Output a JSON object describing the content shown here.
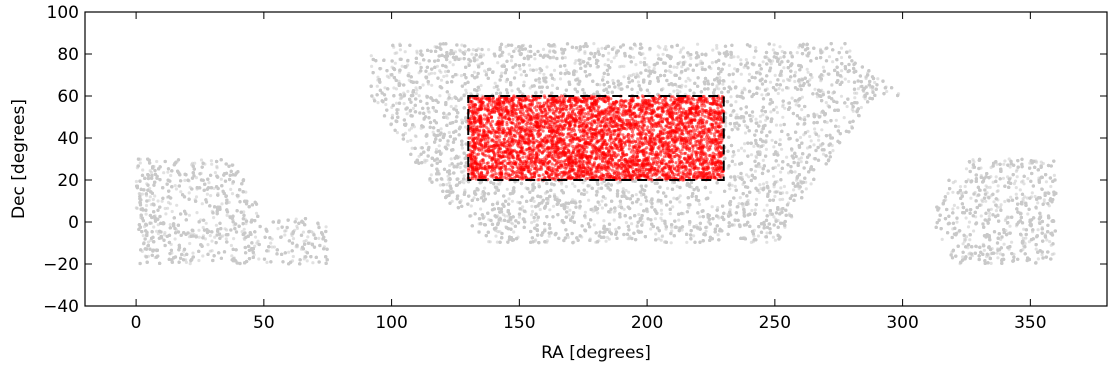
{
  "chart_data": {
    "type": "scatter",
    "title": "",
    "xlabel": "RA [degrees]",
    "ylabel": "Dec [degrees]",
    "xlim": [
      -20,
      380
    ],
    "ylim": [
      -40,
      100
    ],
    "xticks": [
      0,
      50,
      100,
      150,
      200,
      250,
      300,
      350
    ],
    "yticks": [
      -40,
      -20,
      0,
      20,
      40,
      60,
      80,
      100
    ],
    "xtick_labels": [
      "0",
      "50",
      "100",
      "150",
      "200",
      "250",
      "300",
      "350"
    ],
    "ytick_labels": [
      "−40",
      "−20",
      "0",
      "20",
      "40",
      "60",
      "80",
      "100"
    ],
    "grid": false,
    "series": [
      {
        "color": "#c8c8c8",
        "marker": "dot",
        "regions": [
          {
            "ra_range": [
              0,
              75
            ],
            "dec_range": [
              -20,
              30
            ],
            "shape": "left footprint with notch above RA 38–75 at Dec > 0"
          },
          {
            "ra_range": [
              90,
              300
            ],
            "dec_range": [
              -10,
              85
            ],
            "shape": "north galactic cap trapezoid"
          },
          {
            "ra_range": [
              310,
              360
            ],
            "dec_range": [
              -20,
              30
            ],
            "shape": "right footprint"
          }
        ],
        "approx_point_count": 16000
      },
      {
        "color": "#ff0000",
        "marker": "dot",
        "regions": [
          {
            "ra_range": [
              130,
              230
            ],
            "dec_range": [
              20,
              60
            ],
            "shape": "rectangle"
          }
        ],
        "approx_point_count": 4500
      }
    ],
    "annotations": [
      {
        "type": "dashed-rectangle",
        "ra_range": [
          130,
          230
        ],
        "dec_range": [
          20,
          60
        ],
        "color": "#000000"
      }
    ]
  }
}
